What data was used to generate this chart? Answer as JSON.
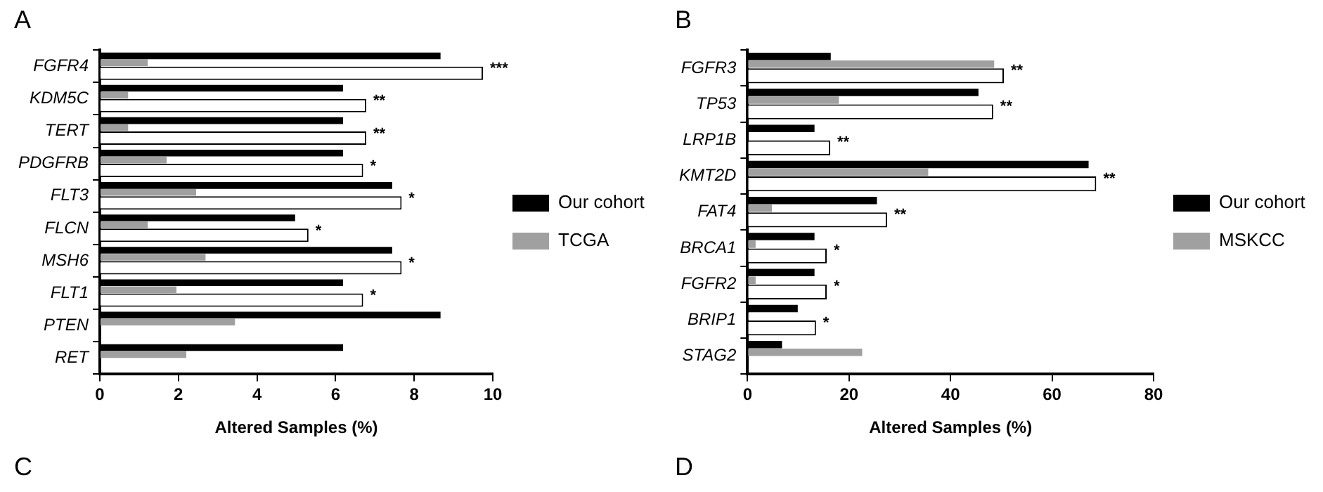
{
  "chart_data": [
    {
      "type": "bar",
      "orientation": "horizontal",
      "title": "A",
      "xlabel": "Altered Samples (%)",
      "categories": [
        "FGFR4",
        "KDM5C",
        "TERT",
        "PDGFRB",
        "FLT3",
        "FLCN",
        "MSH6",
        "FLT1",
        "PTEN",
        "RET"
      ],
      "series": [
        {
          "name": "Our cohort",
          "color": "#000000",
          "values": [
            8.67,
            6.19,
            6.19,
            6.19,
            7.44,
            4.97,
            7.44,
            6.19,
            8.67,
            6.19
          ]
        },
        {
          "name": "TCGA",
          "color": "#a0a0a0",
          "values": [
            1.22,
            0.72,
            0.72,
            1.7,
            2.45,
            1.22,
            2.69,
            1.95,
            3.44,
            2.2
          ]
        },
        {
          "color": "#ffffff",
          "values": [
            9.75,
            6.78,
            6.78,
            6.7,
            7.68,
            5.31,
            7.68,
            6.7,
            null,
            null
          ]
        }
      ],
      "xlim": [
        0,
        10
      ],
      "xticks": [
        0,
        2,
        4,
        6,
        8,
        10
      ],
      "grid": false,
      "legend": "right",
      "annotations": [
        "***",
        "**",
        "**",
        "*",
        "*",
        "*",
        "*",
        "*",
        "C"
      ]
    },
    {
      "type": "bar",
      "orientation": "horizontal",
      "title": "B",
      "xlabel": "Altered Samples (%)",
      "categories": [
        "FGFR3",
        "TP53",
        "LRP1B",
        "KMT2D",
        "FAT4",
        "BRCA1",
        "FGFR2",
        "BRIP1",
        "STAG2"
      ],
      "series": [
        {
          "name": "Our cohort",
          "color": "#000000",
          "values": [
            16.4,
            45.5,
            13.2,
            67.2,
            25.5,
            13.2,
            13.2,
            9.9,
            6.8
          ]
        },
        {
          "name": "MSKCC",
          "color": "#a0a0a0",
          "values": [
            48.6,
            18,
            0,
            35.6,
            4.8,
            1.6,
            1.6,
            0.3,
            22.6
          ]
        },
        {
          "color": "#ffffff",
          "values": [
            50.5,
            48.4,
            16.3,
            68.7,
            27.5,
            15.6,
            15.6,
            13.5,
            null
          ]
        }
      ],
      "xlim": [
        0,
        80
      ],
      "xticks": [
        0,
        20,
        40,
        60,
        80
      ],
      "grid": false,
      "legend": "right",
      "annotations": [
        "**",
        "**",
        "**",
        "**",
        "**",
        "*",
        "*",
        "*",
        "D"
      ]
    }
  ]
}
